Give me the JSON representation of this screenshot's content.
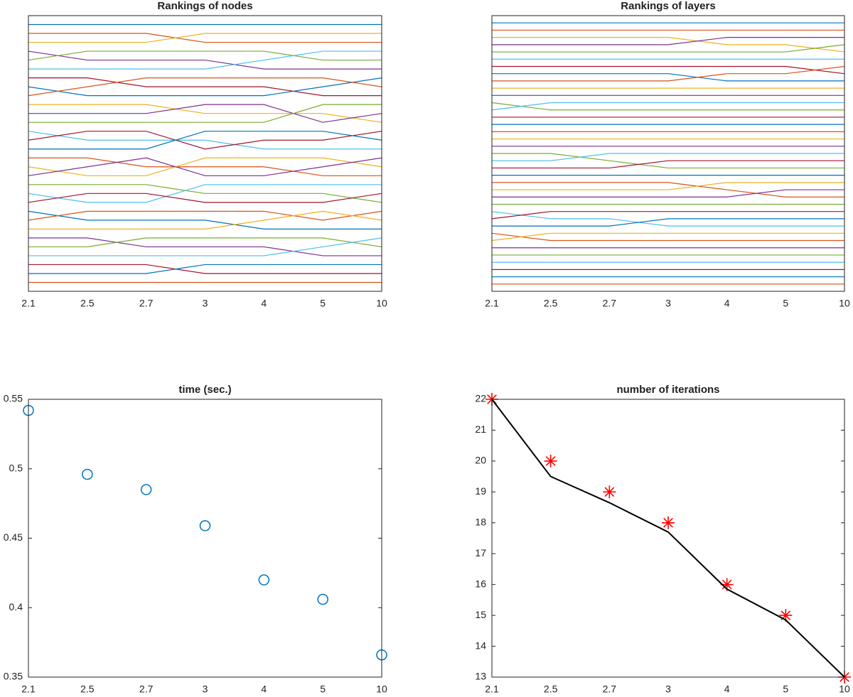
{
  "chart_data": [
    {
      "type": "line",
      "title": "Rankings of nodes",
      "categories": [
        "2.1",
        "2.5",
        "2.7",
        "3",
        "4",
        "5",
        "10"
      ],
      "ylim": [
        0,
        31
      ],
      "y_reversed": true,
      "color_order": [
        "#0072bd",
        "#d95319",
        "#edb120",
        "#7e2f8e",
        "#77ac30",
        "#4dbeee",
        "#a2142f"
      ],
      "series": [
        {
          "values": [
            1,
            1,
            1,
            1,
            1,
            1,
            1
          ]
        },
        {
          "values": [
            2,
            2,
            2,
            3,
            3,
            3,
            3
          ]
        },
        {
          "values": [
            3,
            3,
            3,
            2,
            2,
            2,
            2
          ]
        },
        {
          "values": [
            4,
            5,
            5,
            5,
            6,
            6,
            6
          ]
        },
        {
          "values": [
            5,
            4,
            4,
            4,
            4,
            5,
            5
          ]
        },
        {
          "values": [
            6,
            6,
            6,
            6,
            5,
            4,
            4
          ]
        },
        {
          "values": [
            7,
            7,
            8,
            8,
            8,
            9,
            9
          ]
        },
        {
          "values": [
            8,
            9,
            9,
            9,
            9,
            8,
            7
          ]
        },
        {
          "values": [
            9,
            8,
            7,
            7,
            7,
            7,
            8
          ]
        },
        {
          "values": [
            10,
            10,
            10,
            11,
            11,
            11,
            12
          ]
        },
        {
          "values": [
            11,
            11,
            11,
            10,
            10,
            12,
            11
          ]
        },
        {
          "values": [
            12,
            12,
            12,
            12,
            12,
            10,
            10
          ]
        },
        {
          "values": [
            13,
            14,
            14,
            14,
            15,
            15,
            15
          ]
        },
        {
          "values": [
            14,
            13,
            13,
            15,
            14,
            14,
            13
          ]
        },
        {
          "values": [
            15,
            15,
            15,
            13,
            13,
            13,
            14
          ]
        },
        {
          "values": [
            16,
            16,
            17,
            17,
            17,
            18,
            18
          ]
        },
        {
          "values": [
            17,
            18,
            18,
            16,
            16,
            16,
            17
          ]
        },
        {
          "values": [
            18,
            17,
            16,
            18,
            18,
            17,
            16
          ]
        },
        {
          "values": [
            19,
            19,
            19,
            20,
            20,
            20,
            21
          ]
        },
        {
          "values": [
            20,
            21,
            21,
            19,
            19,
            19,
            19
          ]
        },
        {
          "values": [
            21,
            20,
            20,
            21,
            21,
            21,
            20
          ]
        },
        {
          "values": [
            22,
            23,
            23,
            23,
            24,
            24,
            24
          ]
        },
        {
          "values": [
            23,
            22,
            22,
            22,
            22,
            23,
            22
          ]
        },
        {
          "values": [
            24,
            24,
            24,
            24,
            23,
            22,
            23
          ]
        },
        {
          "values": [
            25,
            25,
            26,
            26,
            26,
            27,
            27
          ]
        },
        {
          "values": [
            26,
            26,
            25,
            25,
            25,
            25,
            26
          ]
        },
        {
          "values": [
            27,
            27,
            27,
            27,
            27,
            26,
            25
          ]
        },
        {
          "values": [
            28,
            28,
            28,
            29,
            29,
            29,
            29
          ]
        },
        {
          "values": [
            29,
            29,
            29,
            28,
            28,
            28,
            28
          ]
        },
        {
          "values": [
            30,
            30,
            30,
            30,
            30,
            30,
            30
          ]
        }
      ]
    },
    {
      "type": "line",
      "title": "Rankings of layers",
      "categories": [
        "2.1",
        "2.5",
        "2.7",
        "3",
        "4",
        "5",
        "10"
      ],
      "ylim": [
        0,
        38
      ],
      "y_reversed": true,
      "color_order": [
        "#0072bd",
        "#d95319",
        "#edb120",
        "#7e2f8e",
        "#77ac30",
        "#4dbeee",
        "#a2142f"
      ],
      "series": [
        {
          "values": [
            1,
            1,
            1,
            1,
            1,
            1,
            1
          ]
        },
        {
          "values": [
            2,
            2,
            2,
            2,
            2,
            2,
            2
          ]
        },
        {
          "values": [
            3,
            3,
            3,
            3,
            4,
            4,
            5
          ]
        },
        {
          "values": [
            4,
            4,
            4,
            4,
            3,
            3,
            3
          ]
        },
        {
          "values": [
            5,
            5,
            5,
            5,
            5,
            5,
            4
          ]
        },
        {
          "values": [
            6,
            6,
            6,
            6,
            6,
            6,
            6
          ]
        },
        {
          "values": [
            7,
            7,
            7,
            7,
            7,
            7,
            8
          ]
        },
        {
          "values": [
            8,
            8,
            8,
            8,
            9,
            9,
            9
          ]
        },
        {
          "values": [
            9,
            9,
            9,
            9,
            8,
            8,
            7
          ]
        },
        {
          "values": [
            10,
            10,
            10,
            10,
            10,
            10,
            10
          ]
        },
        {
          "values": [
            11,
            11,
            11,
            11,
            11,
            11,
            11
          ]
        },
        {
          "values": [
            12,
            13,
            13,
            13,
            13,
            13,
            13
          ]
        },
        {
          "values": [
            13,
            12,
            12,
            12,
            12,
            12,
            12
          ]
        },
        {
          "values": [
            14,
            14,
            14,
            14,
            14,
            14,
            14
          ]
        },
        {
          "values": [
            15,
            15,
            15,
            15,
            15,
            15,
            15
          ]
        },
        {
          "values": [
            16,
            16,
            16,
            16,
            16,
            16,
            16
          ]
        },
        {
          "values": [
            17,
            17,
            17,
            17,
            17,
            17,
            17
          ]
        },
        {
          "values": [
            18,
            18,
            18,
            18,
            18,
            18,
            18
          ]
        },
        {
          "values": [
            19,
            19,
            20,
            21,
            21,
            21,
            21
          ]
        },
        {
          "values": [
            20,
            20,
            19,
            19,
            19,
            19,
            19
          ]
        },
        {
          "values": [
            21,
            21,
            21,
            20,
            20,
            20,
            20
          ]
        },
        {
          "values": [
            22,
            22,
            22,
            22,
            22,
            22,
            22
          ]
        },
        {
          "values": [
            23,
            23,
            23,
            23,
            24,
            25,
            25
          ]
        },
        {
          "values": [
            24,
            24,
            24,
            24,
            23,
            23,
            23
          ]
        },
        {
          "values": [
            25,
            25,
            25,
            25,
            25,
            24,
            24
          ]
        },
        {
          "values": [
            26,
            26,
            26,
            26,
            26,
            26,
            26
          ]
        },
        {
          "values": [
            27,
            28,
            28,
            29,
            29,
            29,
            29
          ]
        },
        {
          "values": [
            28,
            27,
            27,
            27,
            27,
            27,
            27
          ]
        },
        {
          "values": [
            29,
            29,
            29,
            28,
            28,
            28,
            28
          ]
        },
        {
          "values": [
            30,
            31,
            31,
            31,
            31,
            31,
            31
          ]
        },
        {
          "values": [
            31,
            30,
            30,
            30,
            30,
            30,
            30
          ]
        },
        {
          "values": [
            32,
            32,
            32,
            32,
            32,
            32,
            32
          ]
        },
        {
          "values": [
            33,
            33,
            33,
            33,
            33,
            33,
            33
          ]
        },
        {
          "values": [
            34,
            34,
            34,
            34,
            34,
            34,
            34
          ]
        },
        {
          "values": [
            35,
            35,
            35,
            35,
            35,
            35,
            35
          ]
        },
        {
          "values": [
            36,
            36,
            36,
            36,
            36,
            36,
            36
          ]
        },
        {
          "values": [
            37,
            37,
            37,
            37,
            37,
            37,
            37
          ]
        }
      ]
    },
    {
      "type": "scatter",
      "title": "time (sec.)",
      "categories": [
        "2.1",
        "2.5",
        "2.7",
        "3",
        "4",
        "5",
        "10"
      ],
      "ylim": [
        0.35,
        0.55
      ],
      "yticks": [
        0.35,
        0.4,
        0.45,
        0.5,
        0.55
      ],
      "series": [
        {
          "values": [
            0.542,
            0.496,
            0.485,
            0.459,
            0.42,
            0.406,
            0.366
          ],
          "color": "#0072bd",
          "marker": "circle"
        }
      ]
    },
    {
      "type": "line",
      "title": "number of iterations",
      "categories": [
        "2.1",
        "2.5",
        "2.7",
        "3",
        "4",
        "5",
        "10"
      ],
      "ylim": [
        13,
        22
      ],
      "yticks": [
        13,
        14,
        15,
        16,
        17,
        18,
        19,
        20,
        21,
        22
      ],
      "series": [
        {
          "values": [
            22,
            20,
            19,
            18,
            16,
            15,
            13
          ],
          "color": "#ff0000",
          "marker": "star"
        },
        {
          "values": [
            22,
            19.5,
            18.65,
            17.7,
            15.85,
            14.85,
            13
          ],
          "color": "#000000"
        }
      ]
    }
  ]
}
